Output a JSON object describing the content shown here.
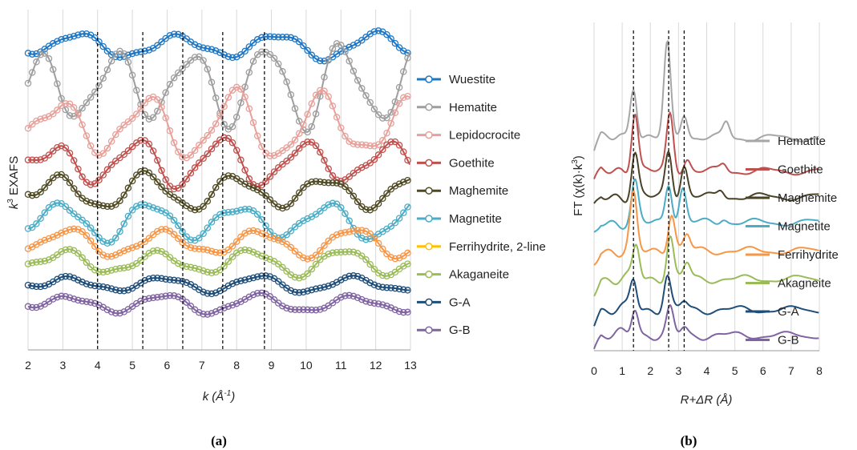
{
  "chart_data": [
    {
      "type": "line",
      "panel_label": "(a)",
      "xlabel_base": "k",
      "xlabel_unit": "(Å",
      "xlabel_unit_sup": "-1",
      "xlabel_close": ")",
      "ylabel_sup": "3",
      "ylabel_base": "k",
      "ylabel_rest": " EXAFS",
      "xlim": [
        2,
        13
      ],
      "x_ticks": [
        "2",
        "3",
        "4",
        "5",
        "6",
        "7",
        "8",
        "9",
        "10",
        "11",
        "12",
        "13"
      ],
      "gridlines": "vertical",
      "markers": "open circles",
      "y_ticks_shown": false,
      "reference_lines_x": [
        4.0,
        5.3,
        6.45,
        7.6,
        8.8
      ],
      "legend_position": "right",
      "series": [
        {
          "name": "Wuestite",
          "color": "#1f77c4",
          "offset": 12.5,
          "amp": 0.55,
          "freq": 2.2,
          "phase": 0.3
        },
        {
          "name": "Hematite",
          "color": "#9e9e9e",
          "offset": 10.9,
          "amp": 1.7,
          "freq": 2.9,
          "phase": 1.0
        },
        {
          "name": "Lepidocrocite",
          "color": "#e8a09a",
          "offset": 9.2,
          "amp": 1.4,
          "freq": 2.5,
          "phase": 0.6
        },
        {
          "name": "Goethite",
          "color": "#c0504d",
          "offset": 7.7,
          "amp": 1.0,
          "freq": 2.6,
          "phase": 0.8
        },
        {
          "name": "Maghemite",
          "color": "#4f4a24",
          "offset": 6.5,
          "amp": 0.75,
          "freq": 2.45,
          "phase": 0.9
        },
        {
          "name": "Magnetite",
          "color": "#4bacc6",
          "offset": 5.3,
          "amp": 0.8,
          "freq": 2.45,
          "phase": 0.7
        },
        {
          "name": "Ferrihydrite, 2-line",
          "color": "#f79646",
          "offset": 4.4,
          "amp": 0.6,
          "freq": 2.3,
          "phase": 0.6
        },
        {
          "name": "Akaganeite",
          "color": "#9bbb59",
          "offset": 3.6,
          "amp": 0.55,
          "freq": 2.35,
          "phase": 0.7
        },
        {
          "name": "G-A",
          "color": "#1f4e79",
          "offset": 2.7,
          "amp": 0.35,
          "freq": 2.3,
          "phase": 0.6
        },
        {
          "name": "G-B",
          "color": "#8064a2",
          "offset": 1.9,
          "amp": 0.4,
          "freq": 2.3,
          "phase": 0.6
        }
      ],
      "legend_swatch_colors": [
        "#1f77c4",
        "#9e9e9e",
        "#e8a09a",
        "#c0504d",
        "#4f4a24",
        "#4bacc6",
        "#ffc000",
        "#9bbb59",
        "#1f4e79",
        "#8064a2"
      ]
    },
    {
      "type": "line",
      "panel_label": "(b)",
      "xlabel_text": "R+ΔR (Å)",
      "ylabel_pre": "FT (χ(k)·k",
      "ylabel_sup": "3",
      "ylabel_post": ")",
      "xlim": [
        0,
        8
      ],
      "x_ticks": [
        "0",
        "1",
        "2",
        "3",
        "4",
        "5",
        "6",
        "7",
        "8"
      ],
      "gridlines": "vertical",
      "y_ticks_shown": false,
      "reference_lines_x": [
        1.4,
        2.65,
        3.2
      ],
      "legend_position": "right",
      "series": [
        {
          "name": "Hematite",
          "color": "#a6a6a6",
          "offset": 8.3,
          "peaks": [
            [
              1.4,
              2.1
            ],
            [
              2.6,
              3.6
            ],
            [
              3.2,
              1.0
            ],
            [
              4.7,
              0.6
            ]
          ]
        },
        {
          "name": "Goethite",
          "color": "#c0504d",
          "offset": 7.0,
          "peaks": [
            [
              1.45,
              2.4
            ],
            [
              2.7,
              2.2
            ],
            [
              3.3,
              0.5
            ],
            [
              4.6,
              0.3
            ]
          ]
        },
        {
          "name": "Maghemite",
          "color": "#4a4226",
          "offset": 6.0,
          "peaks": [
            [
              1.45,
              1.7
            ],
            [
              2.65,
              1.8
            ],
            [
              3.2,
              1.2
            ],
            [
              4.5,
              0.3
            ]
          ]
        },
        {
          "name": "Magnetite",
          "color": "#4bacc6",
          "offset": 5.0,
          "peaks": [
            [
              1.45,
              1.5
            ],
            [
              2.65,
              1.6
            ],
            [
              3.15,
              1.3
            ],
            [
              4.6,
              0.2
            ]
          ]
        },
        {
          "name": "Ferrihydrite",
          "color": "#f79646",
          "offset": 3.9,
          "peaks": [
            [
              1.4,
              2.1
            ],
            [
              2.75,
              1.5
            ],
            [
              3.3,
              0.6
            ]
          ]
        },
        {
          "name": "Akagneite",
          "color": "#9bbb59",
          "offset": 2.8,
          "peaks": [
            [
              1.5,
              1.3
            ],
            [
              2.7,
              1.7
            ],
            [
              3.3,
              0.6
            ]
          ]
        },
        {
          "name": "G-A",
          "color": "#1f4e79",
          "offset": 1.6,
          "peaks": [
            [
              1.4,
              1.2
            ],
            [
              2.6,
              1.3
            ],
            [
              3.2,
              0.3
            ]
          ]
        },
        {
          "name": "G-B",
          "color": "#8064a2",
          "offset": 0.6,
          "peaks": [
            [
              1.45,
              1.1
            ],
            [
              2.7,
              1.0
            ],
            [
              3.2,
              0.3
            ]
          ]
        }
      ]
    }
  ]
}
